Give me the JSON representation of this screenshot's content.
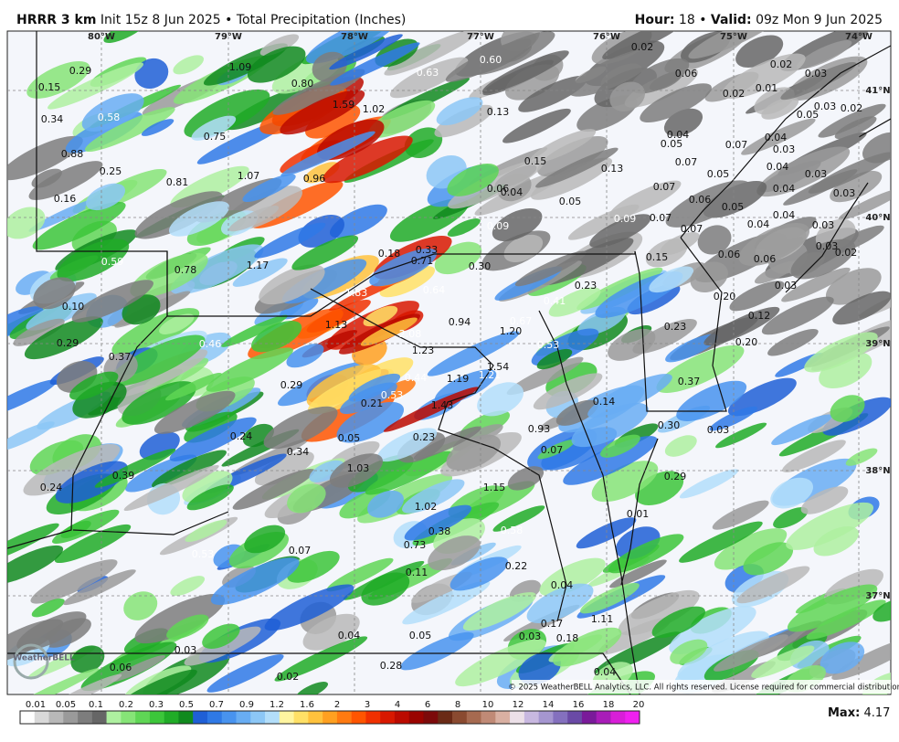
{
  "header": {
    "model": "HRRR 3 km",
    "init": "Init 15z 8 Jun 2025",
    "separator": "•",
    "product": "Total Precipitation (Inches)",
    "hour_label": "Hour:",
    "hour": "18",
    "valid_label": "Valid:",
    "valid": "09z Mon 9 Jun 2025"
  },
  "map": {
    "longitudes": [
      "80°W",
      "79°W",
      "78°W",
      "77°W",
      "76°W",
      "75°W",
      "74°W"
    ],
    "latitudes": [
      "41°N",
      "40°N",
      "39°N",
      "38°N",
      "37°N"
    ],
    "values": [
      "0.29",
      "0.15",
      "0.34",
      "0.58",
      "0.88",
      "0.25",
      "0.16",
      "0.81",
      "0.75",
      "1.07",
      "0.96",
      "1.09",
      "0.80",
      "1.59",
      "1.02",
      "0.63",
      "0.60",
      "0.13",
      "0.15",
      "0.13",
      "0.06",
      "0.04",
      "0.05",
      "0.09",
      "0.09",
      "0.02",
      "0.06",
      "0.02",
      "0.03",
      "0.02",
      "0.01",
      "0.05",
      "0.03",
      "0.02",
      "0.04",
      "0.05",
      "0.07",
      "0.04",
      "0.03",
      "0.07",
      "0.05",
      "0.04",
      "0.03",
      "0.07",
      "0.06",
      "0.05",
      "0.04",
      "0.03",
      "0.07",
      "0.07",
      "0.04",
      "0.04",
      "0.03",
      "0.03",
      "0.02",
      "0.06",
      "0.06",
      "0.03",
      "0.15",
      "0.20",
      "0.12",
      "0.23",
      "0.20",
      "0.37",
      "0.30",
      "0.03",
      "0.29",
      "0.01",
      "0.59",
      "0.78",
      "1.17",
      "0.18",
      "0.33",
      "0.71",
      "0.30",
      "0.64",
      "0.23",
      "0.41",
      "1.83",
      "1.13",
      "2.08",
      "0.94",
      "1.20",
      "0.67",
      "0.53",
      "1.23",
      "1.54",
      "1.21",
      "0.44",
      "1.19",
      "0.53",
      "0.21",
      "1.43",
      "0.14",
      "0.10",
      "0.29",
      "0.37",
      "0.46",
      "0.29",
      "0.24",
      "0.05",
      "0.23",
      "0.34",
      "0.39",
      "0.24",
      "1.03",
      "1.15",
      "0.93",
      "0.07",
      "1.02",
      "0.38",
      "0.73",
      "0.58",
      "0.53",
      "0.07",
      "0.11",
      "0.22",
      "0.04",
      "0.17",
      "0.18",
      "1.11",
      "0.04",
      "0.05",
      "0.03",
      "0.03",
      "0.06",
      "0.02",
      "0.28",
      "0.04"
    ],
    "logo": "WeatherBELL",
    "copyright": "© 2025 WeatherBELL Analytics, LLC. All rights reserved. License required for commercial distribution."
  },
  "legend": {
    "labels": [
      "0.01",
      "0.05",
      "0.1",
      "0.2",
      "0.3",
      "0.5",
      "0.7",
      "0.9",
      "1.2",
      "1.6",
      "2",
      "3",
      "4",
      "6",
      "8",
      "10",
      "12",
      "14",
      "16",
      "18",
      "20"
    ],
    "colors": [
      "#ffffff",
      "#d9d9d9",
      "#b8b8b8",
      "#9a9a9a",
      "#7d7d7d",
      "#666666",
      "#aef0a0",
      "#86e477",
      "#5fd655",
      "#3cc63a",
      "#20ac27",
      "#108a1e",
      "#1f5fd6",
      "#2f79e6",
      "#4893ef",
      "#68adf3",
      "#8cc7f6",
      "#b3defa",
      "#fff5a0",
      "#ffe066",
      "#ffc23d",
      "#ffa020",
      "#ff7a10",
      "#ff5500",
      "#f03000",
      "#d81800",
      "#bb0a00",
      "#9a0400",
      "#7c0a0a",
      "#6a2a16",
      "#8a4a30",
      "#a66a50",
      "#c08a76",
      "#d9b0a2",
      "#ece0e8",
      "#c8b8e0",
      "#a596d0",
      "#8470be",
      "#6a4aa6",
      "#7a1a9a",
      "#a81cb8",
      "#d81ed8",
      "#f020f0"
    ]
  },
  "max": {
    "label": "Max:",
    "value": "4.17"
  }
}
